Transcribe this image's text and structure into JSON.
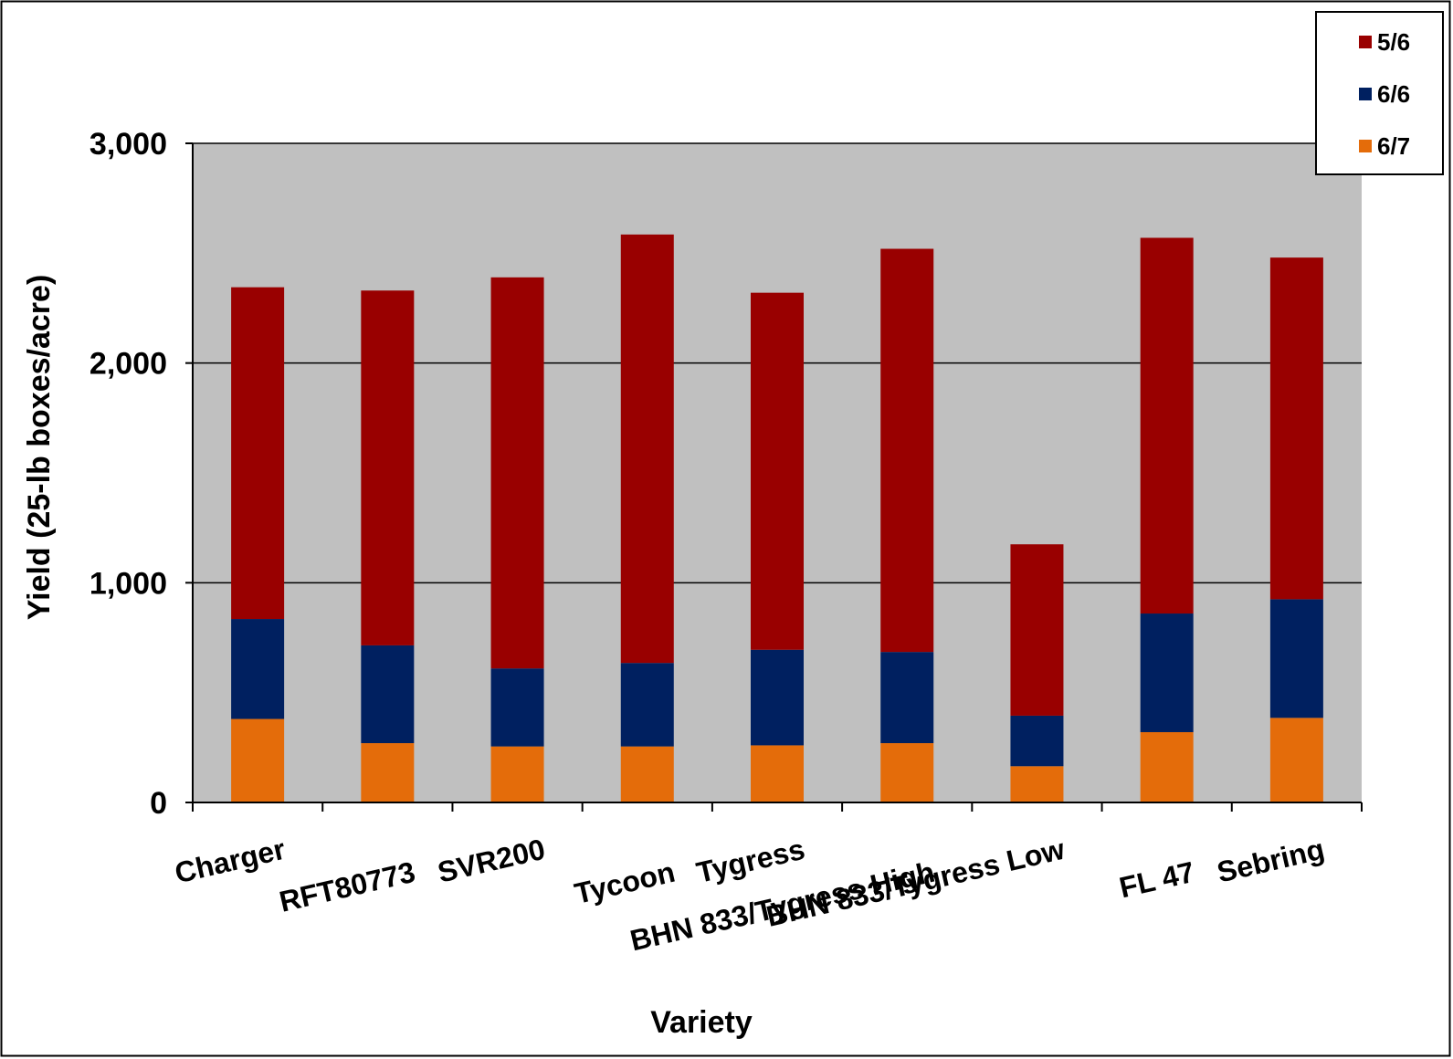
{
  "chart_data": {
    "type": "bar",
    "stacked": true,
    "title": "",
    "xlabel": "Variety",
    "ylabel": "Yield (25-lb boxes/acre)",
    "ylim": [
      0,
      3000
    ],
    "yticks": [
      0,
      1000,
      2000,
      3000
    ],
    "ytick_labels": [
      "0",
      "1,000",
      "2,000",
      "3,000"
    ],
    "grid": true,
    "legend_position": "top-right",
    "plot_background": "#C0C0C0",
    "categories": [
      "Charger",
      "RFT80773",
      "SVR200",
      "Tycoon",
      "Tygress",
      "BHN 833/Tygress High",
      "BHN 833/Tygress Low",
      "FL 47",
      "Sebring"
    ],
    "series": [
      {
        "name": "6/7",
        "color": "#E46C0A",
        "values": [
          380,
          270,
          255,
          255,
          260,
          270,
          165,
          320,
          385
        ]
      },
      {
        "name": "6/6",
        "color": "#002060",
        "values": [
          455,
          445,
          355,
          380,
          435,
          415,
          230,
          540,
          540
        ]
      },
      {
        "name": "5/6",
        "color": "#990000",
        "values": [
          1510,
          1615,
          1780,
          1950,
          1625,
          1835,
          780,
          1710,
          1555
        ]
      }
    ],
    "legend_order": [
      "5/6",
      "6/6",
      "6/7"
    ]
  }
}
